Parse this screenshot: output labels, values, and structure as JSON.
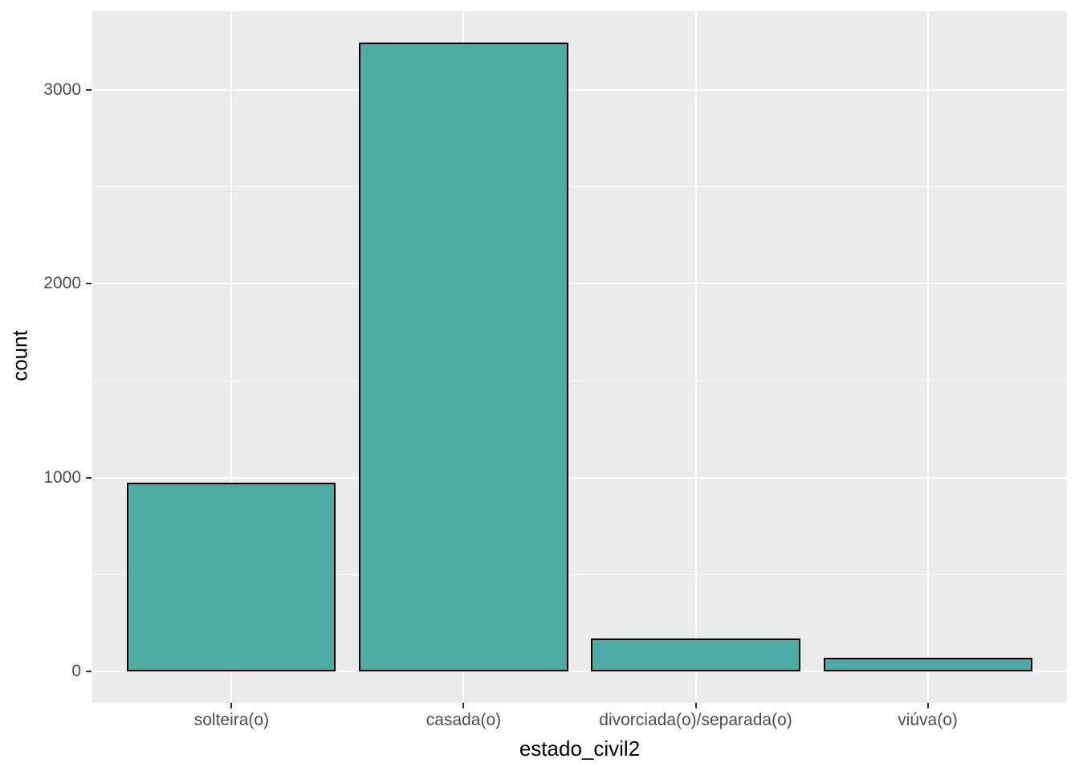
{
  "figure": {
    "background_color": "#FFFFFF",
    "panel_background_color": "#EBEBEB",
    "gridline_color": "#FFFFFF",
    "tick_mark_color": "#333333",
    "tick_label_color": "#4D4D4D",
    "axis_title_color": "#000000",
    "theme": "ggplot2-grey"
  },
  "chart_data": {
    "type": "bar",
    "title": "",
    "xlabel": "estado_civil2",
    "ylabel": "count",
    "categories": [
      "solteira(o)",
      "casada(o)",
      "divorciada(o)/separada(o)",
      "viúva(o)"
    ],
    "values": [
      975,
      3245,
      170,
      70
    ],
    "yticks_major": [
      0,
      1000,
      2000,
      3000
    ],
    "ytick_labels": [
      "0",
      "1000",
      "2000",
      "3000"
    ],
    "yticks_minor": [
      500,
      1500,
      2500
    ],
    "ylim": [
      -162,
      3407
    ],
    "bar_fill": "#4CABA5",
    "bar_stroke": "#000000",
    "bar_width_fraction": 0.9,
    "grid": "major-and-minor-horizontal, major-vertical",
    "legend": "none"
  }
}
